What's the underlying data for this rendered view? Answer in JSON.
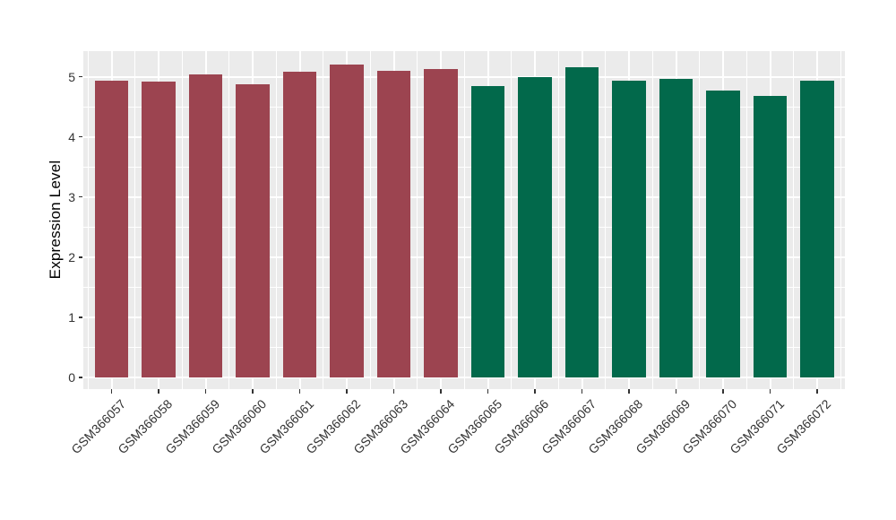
{
  "chart_data": {
    "type": "bar",
    "title": "",
    "xlabel": "",
    "ylabel": "Expression Level",
    "ylim": [
      0,
      5.46
    ],
    "yticks": [
      0,
      1,
      2,
      3,
      4,
      5
    ],
    "ytick_labels": [
      "0",
      "1",
      "2",
      "3",
      "4",
      "5"
    ],
    "grid": "on",
    "legend": "none",
    "panel_background": "#EBEBEB",
    "grid_color": "#FFFFFF",
    "axis_text_color": "#333333",
    "series": [
      {
        "name": "red-group",
        "color": "#9C4450",
        "categories": [
          "GSM366057",
          "GSM366058",
          "GSM366059",
          "GSM366060",
          "GSM366061",
          "GSM366062",
          "GSM366063",
          "GSM366064"
        ],
        "values": [
          4.93,
          4.92,
          5.04,
          4.87,
          5.08,
          5.2,
          5.1,
          5.13
        ]
      },
      {
        "name": "green-group",
        "color": "#02694B",
        "categories": [
          "GSM366065",
          "GSM366066",
          "GSM366067",
          "GSM366068",
          "GSM366069",
          "GSM366070",
          "GSM366071",
          "GSM366072"
        ],
        "values": [
          4.84,
          4.99,
          5.15,
          4.93,
          4.96,
          4.77,
          4.68,
          4.93
        ]
      }
    ]
  }
}
